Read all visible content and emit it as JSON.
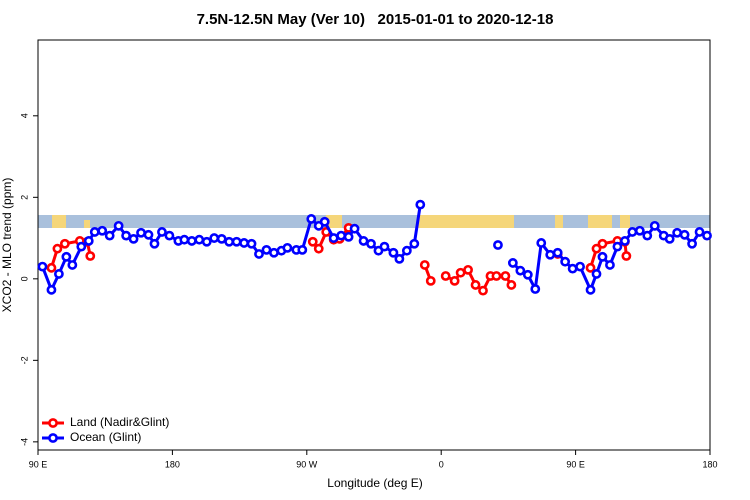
{
  "chart_data": {
    "type": "line",
    "title": "7.5N-12.5N May (Ver 10)   2015-01-01 to 2020-12-18",
    "x_label": "Longitude (deg E)",
    "y_label": "XCO2 - MLO trend (ppm)",
    "xlim": [
      90,
      540
    ],
    "ylim": [
      -4.2,
      5.86
    ],
    "xticks": [
      {
        "value": 90,
        "label": "90 E"
      },
      180,
      {
        "value": 270,
        "label": "90 W"
      },
      {
        "value": 360,
        "label": "0"
      },
      {
        "value": 450,
        "label": "90 E"
      },
      {
        "value": 540,
        "label": "180"
      }
    ],
    "yticks": [
      -4,
      -2,
      0,
      2,
      4
    ],
    "legend": "bottom-left",
    "series": [
      {
        "name": "Land (Nadir&Glint)",
        "color": "#ff0000",
        "x": [
          99,
          103,
          108,
          118,
          123,
          125,
          null,
          274,
          278,
          283,
          288,
          292,
          298,
          null,
          349,
          353,
          null,
          363,
          369,
          373,
          378,
          383,
          388,
          393,
          397,
          403,
          407,
          null,
          438,
          null,
          460,
          464,
          468,
          478,
          483,
          484
        ],
        "values": [
          0.27,
          0.74,
          0.86,
          0.93,
          0.91,
          0.56,
          null,
          0.91,
          0.74,
          1.15,
          0.96,
          0.98,
          1.25,
          null,
          0.34,
          -0.05,
          null,
          0.07,
          -0.05,
          0.15,
          0.22,
          -0.15,
          -0.29,
          0.07,
          0.07,
          0.07,
          -0.15,
          null,
          0.61,
          null,
          0.27,
          0.74,
          0.86,
          0.93,
          0.91,
          0.56
        ]
      },
      {
        "name": "Ocean (Glint)",
        "color": "#0000ff",
        "x": [
          93,
          99,
          104,
          109,
          113,
          119,
          124,
          128,
          133,
          138,
          144,
          149,
          154,
          159,
          164,
          168,
          173,
          178,
          184,
          188,
          193,
          198,
          203,
          208,
          213,
          218,
          223,
          228,
          233,
          238,
          243,
          248,
          253,
          257,
          263,
          267,
          273,
          278,
          282,
          288,
          293,
          298,
          302,
          308,
          313,
          318,
          322,
          328,
          332,
          337,
          342,
          346,
          null,
          398,
          null,
          408,
          413,
          418,
          423,
          427,
          433,
          438,
          443,
          448,
          453,
          460,
          464,
          468,
          473,
          478,
          483,
          488,
          493,
          498,
          503,
          509,
          513,
          518,
          523,
          528,
          533,
          538
        ],
        "values": [
          0.3,
          -0.27,
          0.12,
          0.54,
          0.34,
          0.79,
          0.93,
          1.15,
          1.18,
          1.06,
          1.3,
          1.06,
          0.98,
          1.13,
          1.08,
          0.86,
          1.15,
          1.06,
          0.93,
          0.96,
          0.93,
          0.96,
          0.91,
          1.0,
          0.98,
          0.91,
          0.91,
          0.88,
          0.86,
          0.61,
          0.71,
          0.64,
          0.69,
          0.76,
          0.71,
          0.71,
          1.47,
          1.3,
          1.4,
          1.0,
          1.06,
          1.03,
          1.23,
          0.93,
          0.86,
          0.69,
          0.79,
          0.64,
          0.49,
          0.69,
          0.86,
          1.82,
          null,
          0.83,
          null,
          0.39,
          0.2,
          0.1,
          -0.25,
          0.88,
          0.59,
          0.64,
          0.42,
          0.25,
          0.3,
          -0.27,
          0.12,
          0.54,
          0.34,
          0.79,
          0.93,
          1.15,
          1.18,
          1.06,
          1.3,
          1.06,
          0.98,
          1.13,
          1.08,
          0.86,
          1.15,
          1.06
        ]
      }
    ]
  }
}
